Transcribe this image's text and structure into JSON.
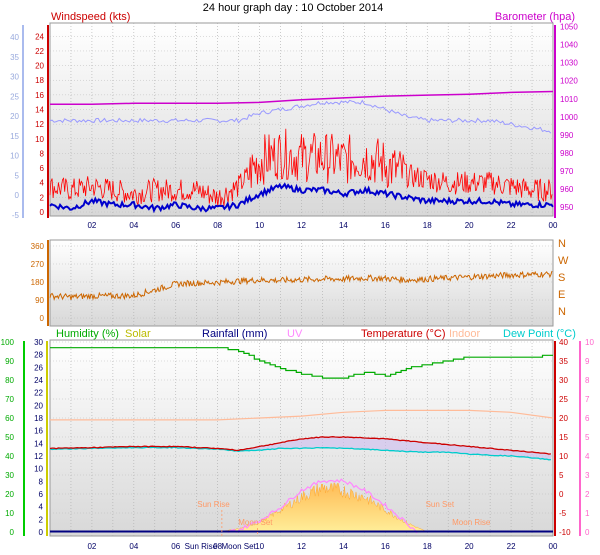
{
  "page_title": "24 hour graph day : 10 October 2014",
  "colors": {
    "wind_gust": "#ff0000",
    "wind_avg": "#0000cc",
    "barometer": "#cc00cc",
    "temp_bg_line": "#9999ff",
    "direction": "#cc6600",
    "humidity": "#00aa00",
    "solar": "#cccc00",
    "rainfall": "#000080",
    "uv": "#ff88ff",
    "temperature": "#cc0000",
    "indoor": "#ffbb99",
    "dew_point": "#00cccc",
    "sun_moon": "#ff9966",
    "axis_blue": "#aabbee",
    "axis_pink": "#ff66cc"
  },
  "x_ticks": [
    "02",
    "04",
    "06",
    "08",
    "10",
    "12",
    "14",
    "16",
    "18",
    "20",
    "22",
    "00"
  ],
  "chart_data": [
    {
      "type": "line",
      "title": "",
      "ylabel_left": "Windspeed (kts)",
      "ylabel_right": "Barometer (hpa)",
      "left_ticks": [
        "24",
        "22",
        "20",
        "18",
        "16",
        "14",
        "12",
        "10",
        "8",
        "6",
        "4",
        "2",
        "0"
      ],
      "left_blue_ticks": [
        "40",
        "35",
        "30",
        "25",
        "20",
        "15",
        "10",
        "5",
        "0",
        "-5"
      ],
      "right_ticks": [
        "1050",
        "1040",
        "1030",
        "1020",
        "1010",
        "1000",
        "990",
        "980",
        "970",
        "960",
        "950"
      ],
      "ylim_wind": [
        0,
        25
      ],
      "ylim_baro": [
        945,
        1052
      ],
      "series": [
        {
          "name": "Barometer (hpa)",
          "x_hours": [
            0,
            2,
            4,
            6,
            8,
            10,
            12,
            14,
            16,
            18,
            20,
            22,
            24
          ],
          "values": [
            1007,
            1007,
            1007.5,
            1007.5,
            1007.5,
            1008,
            1009.5,
            1010.5,
            1011.5,
            1012,
            1012.5,
            1013.5,
            1014
          ]
        },
        {
          "x_hours": [
            0,
            2,
            4,
            6,
            8,
            9,
            10,
            11,
            12,
            13,
            14,
            15,
            16,
            17,
            18,
            19,
            20,
            21,
            22,
            23,
            24
          ],
          "values": [
            12.5,
            12.5,
            12.5,
            12.5,
            12.5,
            12.5,
            13.5,
            14,
            14.5,
            15,
            15,
            15,
            14,
            13,
            12.5,
            12.5,
            12.5,
            12.5,
            12,
            11.5,
            11
          ]
        },
        {
          "name": "Windspeed (kts)",
          "x_hours": [
            0,
            1,
            2,
            3,
            4,
            5,
            6,
            7,
            8,
            9,
            10,
            11,
            12,
            13,
            14,
            15,
            16,
            17,
            18,
            19,
            20,
            21,
            22,
            23,
            24
          ],
          "values": [
            3.5,
            3,
            3.5,
            3,
            2.5,
            3,
            3,
            3,
            2,
            3.5,
            7,
            8,
            7.5,
            7.5,
            7,
            7.5,
            6.5,
            5,
            4.5,
            4,
            4,
            4,
            3.5,
            3,
            3
          ]
        },
        {
          "x_hours": [
            0,
            1,
            2,
            3,
            4,
            5,
            6,
            7,
            8,
            9,
            10,
            11,
            12,
            13,
            14,
            15,
            16,
            17,
            18,
            19,
            20,
            21,
            22,
            23,
            24
          ],
          "values": [
            1,
            0.5,
            1.5,
            1,
            1,
            0.5,
            1,
            0.5,
            0.5,
            1,
            2.5,
            3.5,
            3,
            3,
            2.5,
            3,
            2.5,
            2,
            1.5,
            1.5,
            1.5,
            1.5,
            1,
            1,
            1
          ]
        }
      ]
    },
    {
      "type": "line",
      "left_ticks": [
        "360",
        "270",
        "180",
        "90",
        "0"
      ],
      "right_labels": [
        "N",
        "W",
        "S",
        "E",
        "N"
      ],
      "ylim": [
        0,
        360
      ],
      "series": [
        {
          "x_hours": [
            0,
            1,
            2,
            3,
            4,
            5,
            6,
            7,
            8,
            9,
            10,
            11,
            12,
            13,
            14,
            15,
            16,
            17,
            18,
            19,
            20,
            21,
            22,
            23,
            24
          ],
          "values": [
            110,
            105,
            110,
            110,
            112,
            140,
            170,
            175,
            178,
            185,
            190,
            188,
            192,
            195,
            195,
            200,
            198,
            190,
            195,
            200,
            205,
            210,
            215,
            218,
            220
          ]
        }
      ]
    },
    {
      "type": "area",
      "labels_top": [
        "Humidity  (%)",
        "Solar",
        "Rainfall (mm)",
        "UV",
        "Temperature (°C)",
        "Indoor",
        "Dew Point (°C)"
      ],
      "humidity_ticks": [
        "100",
        "90",
        "80",
        "70",
        "60",
        "50",
        "40",
        "30",
        "20",
        "10",
        "0"
      ],
      "solar_ticks": [
        "30",
        "28",
        "26",
        "24",
        "22",
        "20",
        "18",
        "16",
        "14",
        "12",
        "10",
        "8",
        "6",
        "4",
        "2",
        "0"
      ],
      "temp_ticks": [
        "40",
        "35",
        "30",
        "25",
        "20",
        "15",
        "10",
        "5",
        "0",
        "-5",
        "-10"
      ],
      "uv_ticks": [
        "10",
        "9",
        "8",
        "7",
        "6",
        "5",
        "4",
        "3",
        "2",
        "1",
        "0"
      ],
      "ylim_temp": [
        -10,
        40
      ],
      "annotations": [
        "Sun Rise",
        "Moon Set",
        "Sun Set",
        "Moon Rise"
      ],
      "x_ticks_extra": [
        "Sun Rise",
        "Moon Set"
      ],
      "series": [
        {
          "name": "Humidity  (%)",
          "x_hours": [
            0,
            2,
            4,
            6,
            8,
            9,
            10,
            11,
            12,
            13,
            14,
            15,
            16,
            17,
            18,
            19,
            20,
            21,
            22,
            23,
            24
          ],
          "values": [
            97,
            97,
            97,
            97,
            97,
            95,
            90,
            86,
            83,
            81,
            81,
            84,
            82,
            86,
            88,
            90,
            92,
            92,
            92,
            92,
            93
          ]
        },
        {
          "name": "Indoor",
          "x_hours": [
            0,
            2,
            4,
            6,
            8,
            10,
            12,
            14,
            16,
            18,
            20,
            22,
            24
          ],
          "values": [
            19.5,
            19.5,
            19.5,
            19.5,
            19.5,
            20,
            20.5,
            21.5,
            22,
            22,
            22,
            21.5,
            20
          ]
        },
        {
          "name": "Temperature (°C)",
          "x_hours": [
            0,
            2,
            4,
            6,
            8,
            9,
            10,
            11,
            12,
            13,
            14,
            15,
            16,
            17,
            18,
            19,
            20,
            21,
            22,
            23,
            24
          ],
          "values": [
            12,
            12.2,
            12.5,
            12.5,
            12,
            11.5,
            12.5,
            13.5,
            14.5,
            15,
            15,
            14.8,
            14.5,
            14,
            13.5,
            13,
            12.5,
            12,
            11.5,
            11,
            10.5
          ]
        },
        {
          "name": "Dew Point (°C)",
          "x_hours": [
            0,
            2,
            4,
            6,
            8,
            9,
            10,
            11,
            12,
            13,
            14,
            15,
            16,
            17,
            18,
            19,
            20,
            21,
            22,
            23,
            24
          ],
          "values": [
            11.8,
            12,
            12.2,
            12.2,
            11.8,
            11.3,
            11.5,
            12,
            12,
            12.2,
            12,
            11.8,
            11.5,
            11.2,
            11,
            11,
            10.5,
            10.2,
            10,
            9.5,
            9
          ]
        },
        {
          "name": "Solar",
          "x_hours": [
            8,
            9,
            10,
            11,
            12,
            13,
            14,
            15,
            16,
            17,
            18
          ],
          "values": [
            0,
            0.5,
            1.5,
            3.5,
            5.5,
            7,
            6.5,
            5.5,
            3.5,
            1.5,
            0
          ]
        },
        {
          "name": "UV",
          "x_hours": [
            8.5,
            9,
            10,
            11,
            12,
            13,
            14,
            15,
            16,
            17,
            17.5
          ],
          "values": [
            0,
            0.1,
            0.6,
            1.3,
            2.2,
            2.7,
            2.7,
            2.2,
            1.4,
            0.5,
            0
          ]
        },
        {
          "name": "Rainfall (mm)",
          "x_hours": [
            0,
            24
          ],
          "values": [
            0,
            0
          ]
        }
      ]
    }
  ]
}
